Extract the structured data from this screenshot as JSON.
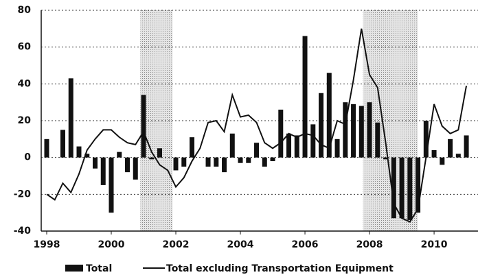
{
  "chart_data": {
    "type": "bar_line",
    "x": [
      1998,
      1998.25,
      1998.5,
      1998.75,
      1999,
      1999.25,
      1999.5,
      1999.75,
      2000,
      2000.25,
      2000.5,
      2000.75,
      2001,
      2001.25,
      2001.5,
      2001.75,
      2002,
      2002.25,
      2002.5,
      2002.75,
      2003,
      2003.25,
      2003.5,
      2003.75,
      2004,
      2004.25,
      2004.5,
      2004.75,
      2005,
      2005.25,
      2005.5,
      2005.75,
      2006,
      2006.25,
      2006.5,
      2006.75,
      2007,
      2007.25,
      2007.5,
      2007.75,
      2008,
      2008.25,
      2008.5,
      2008.75,
      2009,
      2009.25,
      2009.5,
      2009.75,
      2010,
      2010.25,
      2010.5,
      2010.75,
      2011
    ],
    "series": [
      {
        "name": "Total",
        "color": "#111111",
        "kind": "bar",
        "values": [
          10,
          0,
          15,
          43,
          6,
          2,
          -6,
          -15,
          -30,
          3,
          -8,
          -12,
          34,
          -1,
          5,
          0,
          -7,
          -5,
          11,
          0,
          -5,
          -5,
          -8,
          13,
          -3,
          -3,
          8,
          -5,
          -2,
          26,
          13,
          12,
          66,
          18,
          35,
          46,
          10,
          30,
          29,
          28,
          30,
          19,
          -1,
          -33,
          -33,
          -34,
          -30,
          20,
          4,
          -4,
          10,
          2,
          12
        ]
      },
      {
        "name": "Total excluding Transportation Equipment",
        "color": "#111111",
        "kind": "line",
        "values": [
          -20,
          -23,
          -14,
          -19,
          -9,
          4,
          10,
          15,
          15,
          11,
          8,
          7,
          14,
          3,
          -4,
          -7,
          -16,
          -11,
          -2,
          5,
          19,
          20,
          14,
          34,
          22,
          23,
          19,
          8,
          5,
          8,
          13,
          11,
          13,
          12,
          7,
          5,
          20,
          18,
          42,
          70,
          45,
          38,
          8,
          -25,
          -33,
          -35,
          -28,
          0,
          29,
          17,
          13,
          15,
          39
        ]
      }
    ],
    "shaded_periods": [
      [
        2000.9,
        2001.9
      ],
      [
        2007.8,
        2009.5
      ]
    ],
    "xlim": [
      1997.83,
      2011.36
    ],
    "xticks": [
      1998,
      2000,
      2002,
      2004,
      2006,
      2008,
      2010
    ],
    "ylim": [
      -40,
      80
    ],
    "yticks": [
      -40,
      -20,
      0,
      20,
      40,
      60,
      80
    ],
    "grid": true,
    "legend": "bottom"
  }
}
